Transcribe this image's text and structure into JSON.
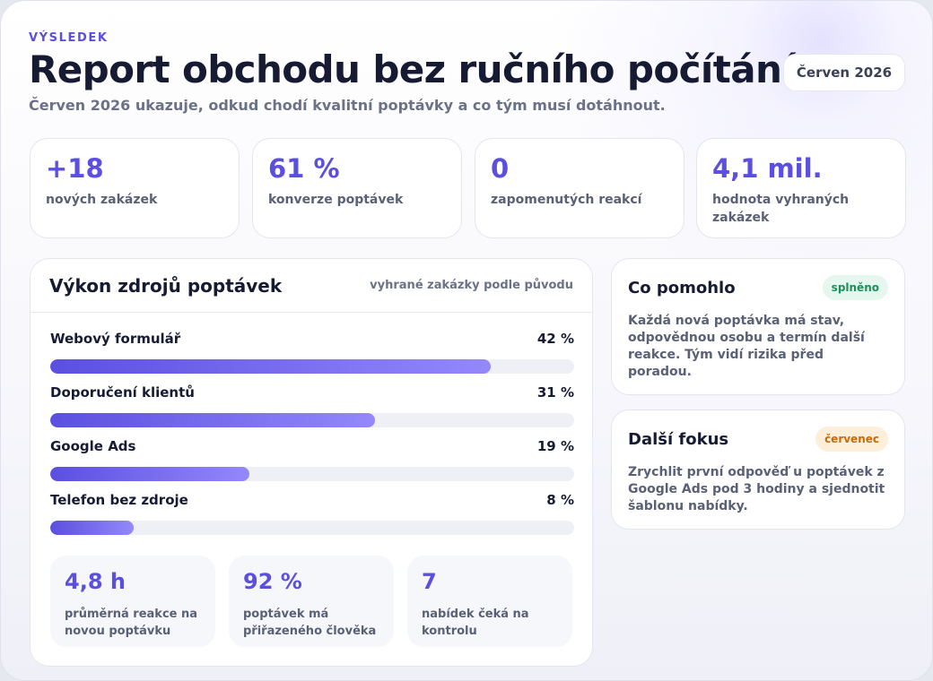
{
  "header": {
    "eyebrow": "VÝSLEDEK",
    "title": "Report obchodu bez ručního počítání",
    "period": "Červen 2026",
    "subtitle": "Červen 2026 ukazuje, odkud chodí kvalitní poptávky a co tým musí dotáhnout."
  },
  "kpis": [
    {
      "value": "+18",
      "label": "nových zakázek"
    },
    {
      "value": "61 %",
      "label": "konverze poptávek"
    },
    {
      "value": "0",
      "label": "zapomenutých reakcí"
    },
    {
      "value": "4,1 mil.",
      "label": "hodnota vyhraných zakázek"
    }
  ],
  "sources_panel": {
    "title": "Výkon zdrojů poptávek",
    "note": "vyhrané zakázky podle původu",
    "sources": [
      {
        "name": "Webový formulář",
        "share_label": "42 %",
        "share": 42
      },
      {
        "name": "Doporučení klientů",
        "share_label": "31 %",
        "share": 31
      },
      {
        "name": "Google Ads",
        "share_label": "19 %",
        "share": 19
      },
      {
        "name": "Telefon bez zdroje",
        "share_label": "8 %",
        "share": 8
      }
    ],
    "stats": [
      {
        "value": "4,8 h",
        "label": "průměrná reakce na novou poptávku"
      },
      {
        "value": "92 %",
        "label": "poptávek má přiřazeného člověka"
      },
      {
        "value": "7",
        "label": "nabídek čeká na kontrolu"
      }
    ]
  },
  "cards": {
    "helped": {
      "title": "Co pomohlo",
      "tag": "splněno",
      "text": "Každá nová poptávka má stav, odpovědnou osobu a termín další reakce. Tým vidí rizika před poradou."
    },
    "next": {
      "title": "Další fokus",
      "tag": "červenec",
      "text": "Zrychlit první odpověď u poptávek z Google Ads pod 3 hodiny a sjednotit šablonu nabídky."
    }
  },
  "colors": {
    "accent": "#5b4fe0",
    "success": "#16935a",
    "warning": "#c76a0c"
  }
}
